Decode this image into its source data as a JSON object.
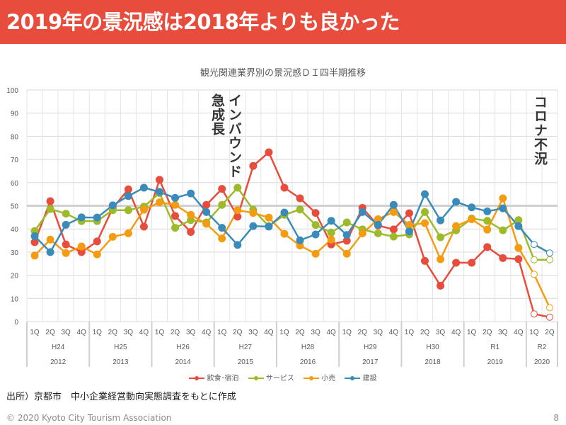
{
  "header": {
    "title": "2019年の景況感は2018年よりも良かった"
  },
  "chart_data": {
    "type": "line",
    "title": "観光関連業界別の景況感ＤＩ四半期推移",
    "xlabel": "",
    "ylabel": "",
    "ylim": [
      0,
      100
    ],
    "yticks": [
      0,
      10,
      20,
      30,
      40,
      50,
      60,
      70,
      80,
      90,
      100
    ],
    "grid": true,
    "reference_line": 50,
    "legend_position": "bottom",
    "quarters": [
      "1Q",
      "2Q",
      "3Q",
      "4Q",
      "1Q",
      "2Q",
      "3Q",
      "4Q",
      "1Q",
      "2Q",
      "3Q",
      "4Q",
      "1Q",
      "2Q",
      "3Q",
      "4Q",
      "1Q",
      "2Q",
      "3Q",
      "4Q",
      "1Q",
      "2Q",
      "3Q",
      "4Q",
      "1Q",
      "2Q",
      "3Q",
      "4Q",
      "1Q",
      "2Q",
      "3Q",
      "4Q",
      "1Q",
      "2Q"
    ],
    "groups": [
      {
        "era": "H24",
        "year": "2012",
        "count": 4
      },
      {
        "era": "H25",
        "year": "2013",
        "count": 4
      },
      {
        "era": "H26",
        "year": "2014",
        "count": 4
      },
      {
        "era": "H27",
        "year": "2015",
        "count": 4
      },
      {
        "era": "H28",
        "year": "2016",
        "count": 4
      },
      {
        "era": "H29",
        "year": "2017",
        "count": 4
      },
      {
        "era": "H30",
        "year": "2018",
        "count": 4
      },
      {
        "era": "R1",
        "year": "2019",
        "count": 4
      },
      {
        "era": "R2",
        "year": "2020",
        "count": 2
      }
    ],
    "forecast_from_index": 32,
    "series": [
      {
        "name": "飲食･宿泊",
        "color": "#e74c3c",
        "values": [
          34.3,
          52.0,
          33.3,
          30.0,
          34.6,
          49.0,
          57.1,
          41.0,
          61.2,
          45.6,
          38.7,
          50.4,
          57.3,
          45.3,
          67.2,
          73.1,
          57.8,
          53.2,
          46.9,
          33.3,
          34.9,
          49.1,
          41.5,
          39.8,
          46.8,
          26.2,
          15.5,
          25.4,
          25.4,
          32.2,
          27.4,
          27.0,
          3.3,
          1.9
        ]
      },
      {
        "name": "サービス",
        "color": "#9cba2a",
        "values": [
          39.1,
          48.6,
          46.6,
          43.4,
          43.4,
          48.1,
          48.1,
          49.6,
          55.5,
          40.5,
          43.8,
          42.8,
          50.4,
          57.8,
          48.3,
          41.2,
          46.1,
          48.4,
          41.7,
          38.4,
          42.8,
          39.8,
          38.1,
          36.7,
          37.6,
          47.3,
          36.4,
          39.4,
          44.5,
          43.5,
          39.4,
          43.8,
          26.7,
          26.7
        ]
      },
      {
        "name": "小売",
        "color": "#f39c12",
        "values": [
          28.5,
          35.4,
          29.6,
          32.4,
          29.0,
          36.6,
          38.1,
          48.3,
          51.5,
          50.4,
          46.1,
          42.2,
          35.9,
          48.1,
          46.9,
          44.9,
          37.9,
          32.8,
          29.3,
          35.4,
          29.3,
          38.1,
          44.2,
          47.3,
          41.7,
          42.5,
          26.9,
          41.2,
          44.2,
          39.7,
          53.2,
          31.8,
          20.4,
          6.0
        ]
      },
      {
        "name": "建設",
        "color": "#3b8bba",
        "values": [
          36.9,
          30.0,
          41.8,
          45.0,
          44.9,
          50.2,
          54.2,
          57.8,
          56.0,
          53.4,
          55.3,
          47.3,
          40.5,
          33.1,
          41.2,
          41.0,
          47.1,
          35.1,
          37.6,
          43.5,
          37.4,
          47.3,
          41.8,
          50.4,
          38.9,
          55.0,
          43.7,
          51.7,
          49.3,
          47.6,
          48.9,
          41.2,
          33.3,
          29.6
        ]
      }
    ],
    "annotations": [
      {
        "text": "インバウンド急成長",
        "lines": [
          "インバウンド",
          "急成長"
        ],
        "near": "2Q 2015"
      },
      {
        "text": "コロナ不況",
        "near": "2Q 2020"
      }
    ]
  },
  "source_note": "出所）京都市　中小企業経営動向実態調査をもとに作成",
  "footer": {
    "copyright": "© 2020 Kyoto City Tourism Association",
    "page": "8"
  }
}
